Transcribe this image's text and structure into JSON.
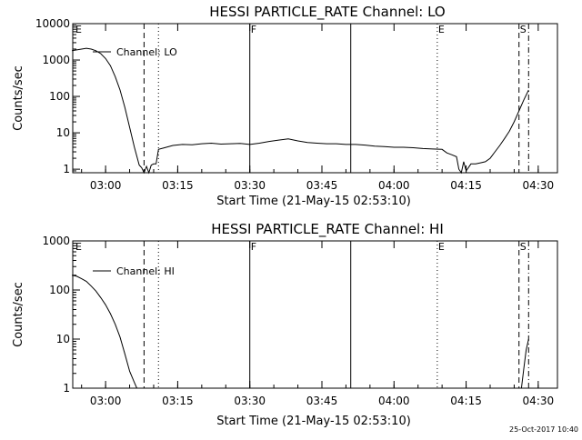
{
  "stamp": "25-Oct-2017 10:40",
  "chart_data": [
    {
      "type": "line",
      "title": "HESSI PARTICLE_RATE Channel: LO",
      "xlabel": "Start Time (21-May-15 02:53:10)",
      "ylabel": "Counts/sec",
      "y_scale": "log",
      "ylim": [
        0.8,
        10000
      ],
      "y_ticks": [
        "1",
        "10",
        "100",
        "1000",
        "10000"
      ],
      "x_tick_labels": [
        "03:00",
        "03:15",
        "03:30",
        "03:45",
        "04:00",
        "04:15",
        "04:30"
      ],
      "legend": "Channel: LO",
      "legend_position": "top-left",
      "markers": [
        {
          "label": "E",
          "time": "02:53",
          "style": "none"
        },
        {
          "label": "",
          "time": "03:08",
          "style": "dashed"
        },
        {
          "label": "",
          "time": "03:11",
          "style": "dotted"
        },
        {
          "label": "F",
          "time": "03:30",
          "style": "solid"
        },
        {
          "label": "",
          "time": "03:51",
          "style": "solid"
        },
        {
          "label": "E",
          "time": "04:09",
          "style": "dotted"
        },
        {
          "label": "S",
          "time": "04:26",
          "style": "dashed"
        },
        {
          "label": "",
          "time": "04:28",
          "style": "dashdot"
        }
      ],
      "series": [
        {
          "name": "Channel: LO",
          "times": [
            "02:53",
            "02:54",
            "02:55",
            "02:56",
            "02:57",
            "02:58",
            "02:59",
            "03:00",
            "03:01",
            "03:02",
            "03:03",
            "03:04",
            "03:05",
            "03:06",
            "03:07",
            "03:07:30",
            "03:08",
            "03:08:30",
            "03:09",
            "03:09:30",
            "03:10",
            "03:10:30",
            "03:11",
            "03:12",
            "03:14",
            "03:16",
            "03:18",
            "03:20",
            "03:22",
            "03:24",
            "03:26",
            "03:28",
            "03:30",
            "03:32",
            "03:34",
            "03:36",
            "03:38",
            "03:40",
            "03:42",
            "03:44",
            "03:46",
            "03:48",
            "03:50",
            "03:52",
            "03:54",
            "03:56",
            "03:58",
            "04:00",
            "04:02",
            "04:04",
            "04:06",
            "04:08",
            "04:10",
            "04:11",
            "04:12",
            "04:13",
            "04:13:30",
            "04:14",
            "04:14:30",
            "04:15",
            "04:16",
            "04:17",
            "04:18",
            "04:19",
            "04:20",
            "04:21",
            "04:22",
            "04:23",
            "04:24",
            "04:25",
            "04:26",
            "04:27",
            "04:28"
          ],
          "values": [
            1800,
            1900,
            2000,
            2100,
            2000,
            1800,
            1500,
            1100,
            700,
            350,
            150,
            50,
            14,
            4,
            1.3,
            1.1,
            0.8,
            1.2,
            0.8,
            1.3,
            1.4,
            1.4,
            3.5,
            3.8,
            4.5,
            4.8,
            4.7,
            5.0,
            5.2,
            4.9,
            5.0,
            5.1,
            4.8,
            5.2,
            5.8,
            6.3,
            6.8,
            6.0,
            5.4,
            5.2,
            5.0,
            5.0,
            4.8,
            4.8,
            4.6,
            4.3,
            4.2,
            4.0,
            4.0,
            3.9,
            3.7,
            3.6,
            3.5,
            2.8,
            2.5,
            2.2,
            1.0,
            0.8,
            1.6,
            0.9,
            1.4,
            1.4,
            1.5,
            1.6,
            2.0,
            3.0,
            4.5,
            7,
            11,
            20,
            40,
            80,
            150
          ]
        }
      ]
    },
    {
      "type": "line",
      "title": "HESSI PARTICLE_RATE Channel: HI",
      "xlabel": "Start Time (21-May-15 02:53:10)",
      "ylabel": "Counts/sec",
      "y_scale": "log",
      "ylim": [
        1,
        1000
      ],
      "y_ticks": [
        "1",
        "10",
        "100",
        "1000"
      ],
      "x_tick_labels": [
        "03:00",
        "03:15",
        "03:30",
        "03:45",
        "04:00",
        "04:15",
        "04:30"
      ],
      "legend": "Channel: HI",
      "legend_position": "top-left",
      "markers": [
        {
          "label": "E",
          "time": "02:53",
          "style": "none"
        },
        {
          "label": "",
          "time": "03:08",
          "style": "dashed"
        },
        {
          "label": "",
          "time": "03:11",
          "style": "dotted"
        },
        {
          "label": "F",
          "time": "03:30",
          "style": "solid"
        },
        {
          "label": "",
          "time": "03:51",
          "style": "solid"
        },
        {
          "label": "E",
          "time": "04:09",
          "style": "dotted"
        },
        {
          "label": "S",
          "time": "04:26",
          "style": "dashed"
        },
        {
          "label": "",
          "time": "04:28",
          "style": "dashdot"
        }
      ],
      "series": [
        {
          "name": "Channel: HI",
          "times": [
            "02:53",
            "02:54",
            "02:55",
            "02:56",
            "02:57",
            "02:58",
            "02:59",
            "03:00",
            "03:01",
            "03:02",
            "03:03",
            "03:04",
            "03:05",
            "03:06",
            "03:06:30"
          ],
          "values": [
            200,
            190,
            170,
            150,
            120,
            95,
            70,
            50,
            33,
            20,
            11,
            5,
            2.2,
            1.3,
            1.0
          ]
        },
        {
          "name": "Channel: HI (tail)",
          "times": [
            "04:26:30",
            "04:27",
            "04:27:30",
            "04:28"
          ],
          "values": [
            1.0,
            2.5,
            6,
            10
          ]
        }
      ]
    }
  ]
}
